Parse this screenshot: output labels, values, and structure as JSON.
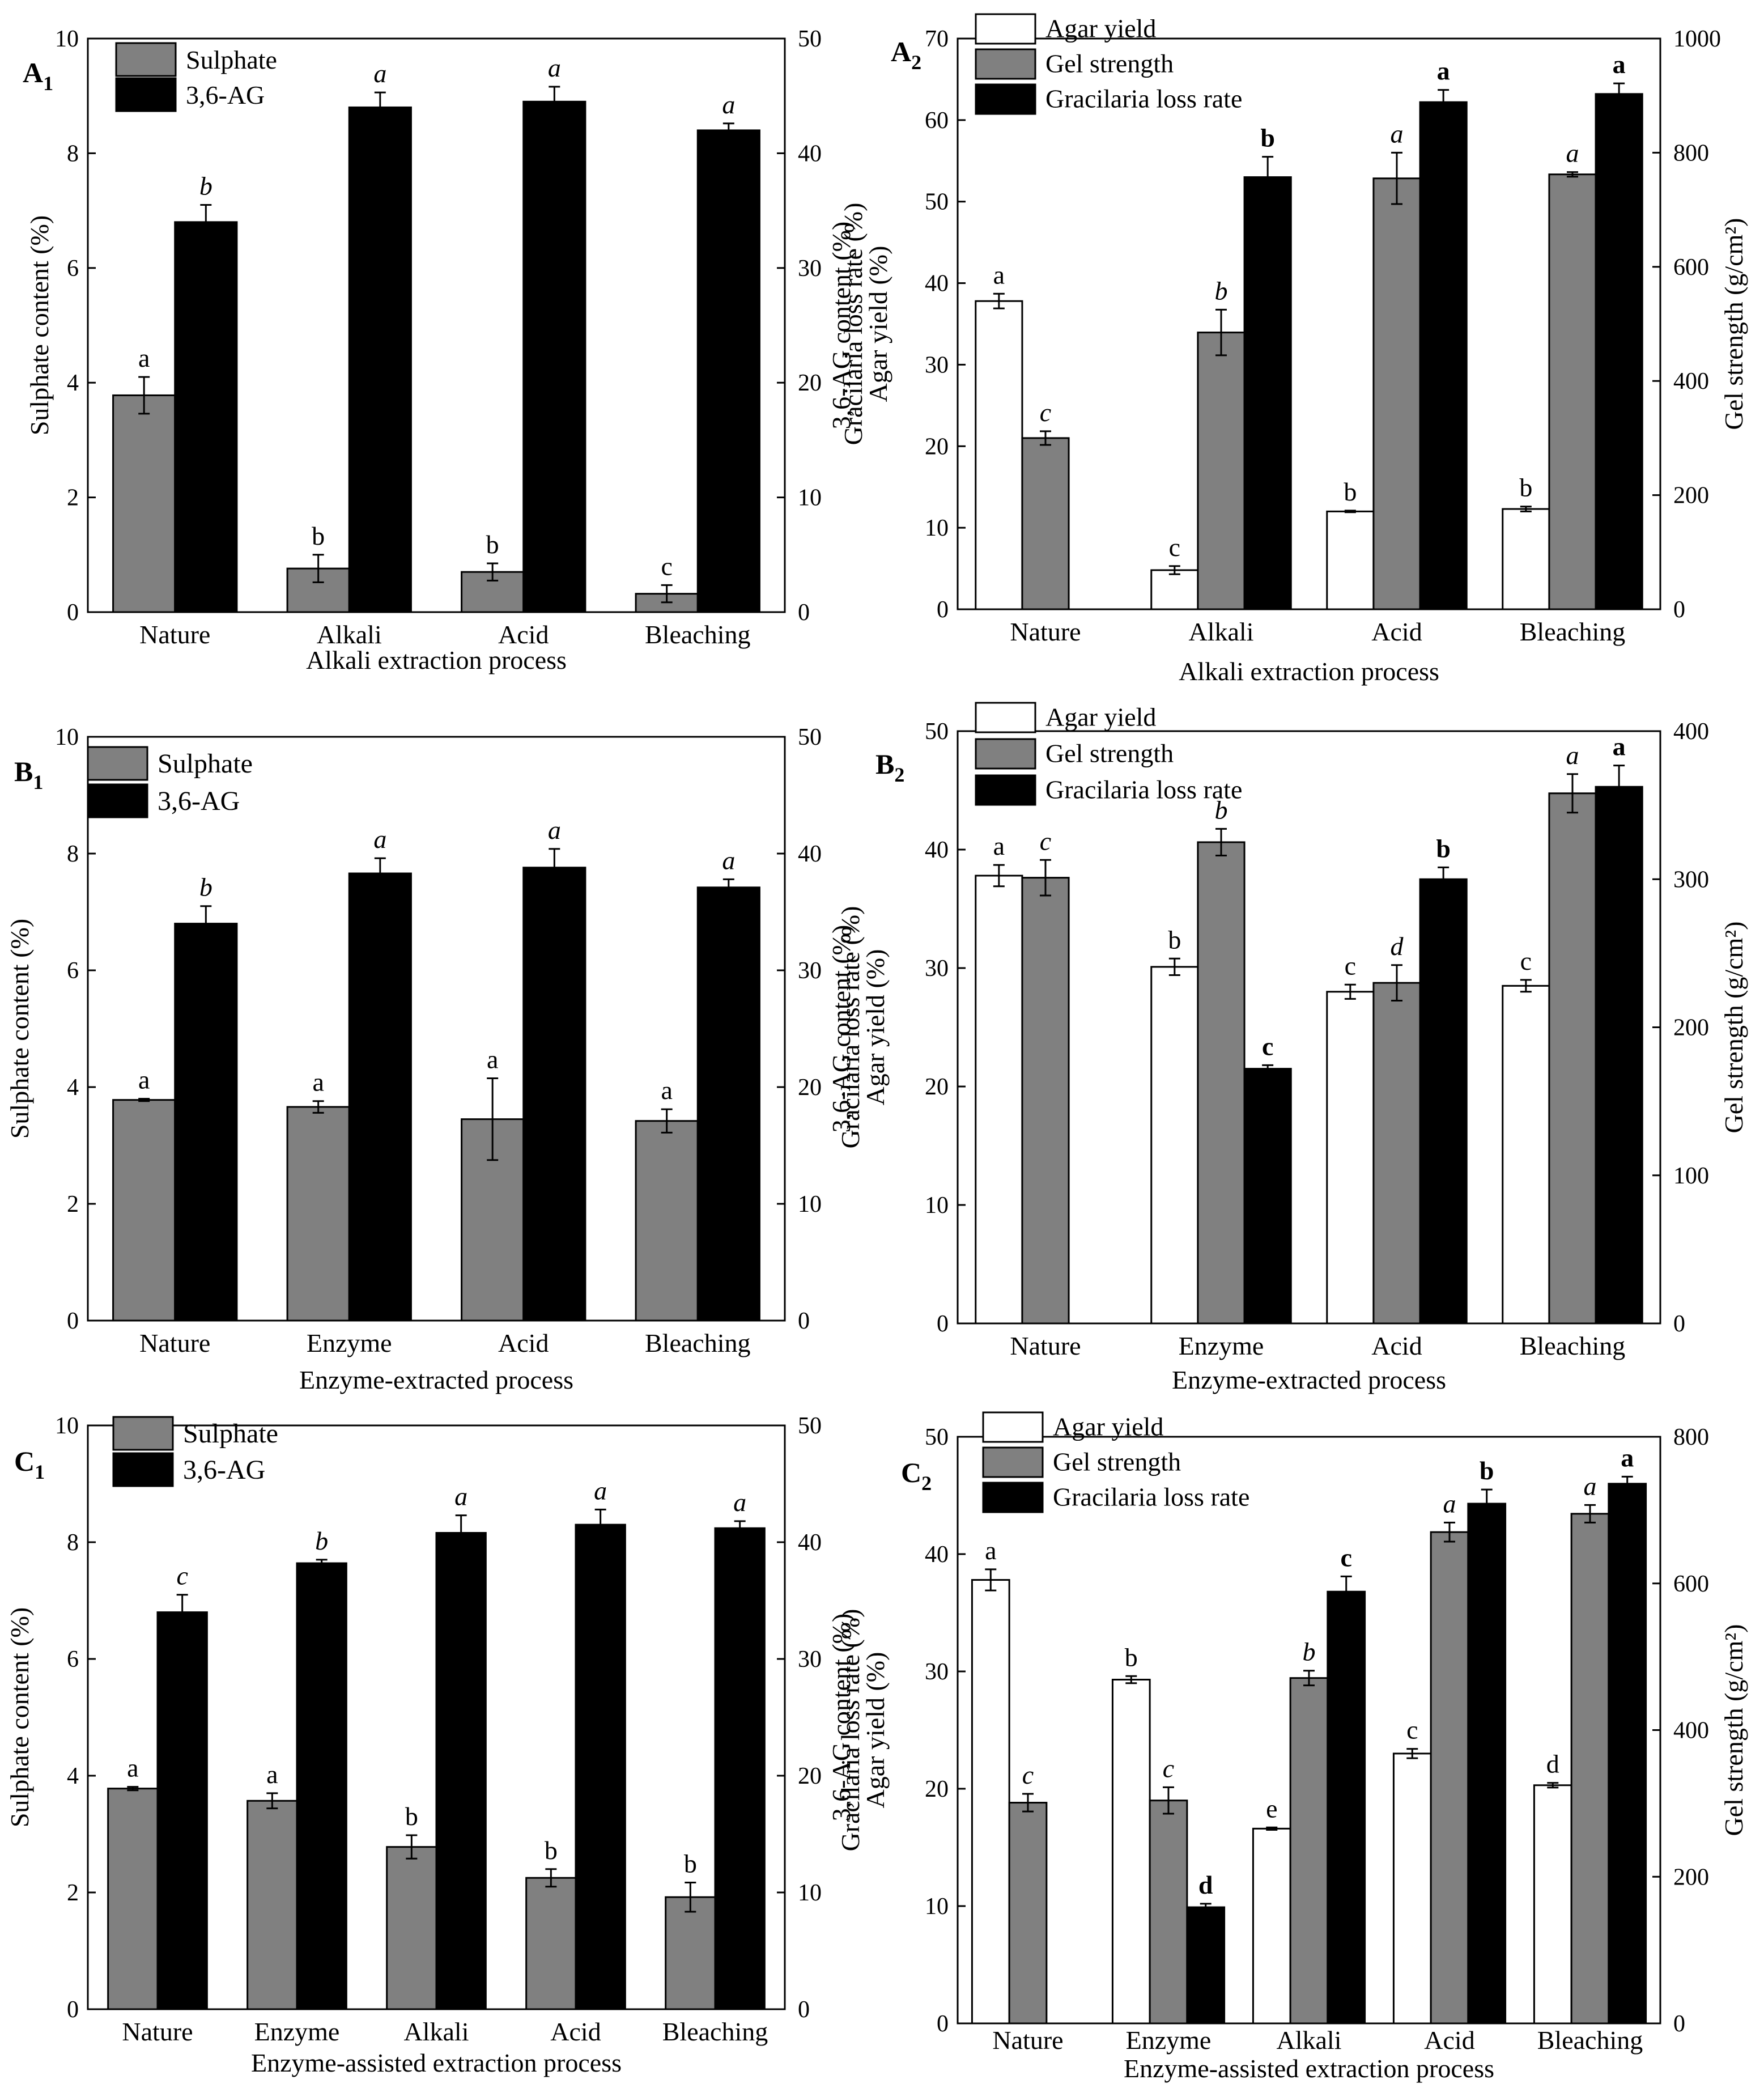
{
  "chart_data": [
    {
      "id": "A1",
      "type": "bar",
      "panel_label": "A",
      "panel_sub": "1",
      "categories": [
        "Nature",
        "Alkali",
        "Acid",
        "Bleaching"
      ],
      "xlabel": "Alkali extraction process",
      "ylabel": "Sulphate content (%)",
      "ylabel2": "3,6-AG content (%)",
      "ylim": [
        0,
        10
      ],
      "yticks": [
        0,
        2,
        4,
        6,
        8,
        10
      ],
      "ylim2": [
        0,
        50
      ],
      "yticks2": [
        0,
        10,
        20,
        30,
        40,
        50
      ],
      "series": [
        {
          "name": "Sulphate",
          "axis": "left",
          "color": "#808080",
          "values": [
            3.78,
            0.76,
            0.7,
            0.32
          ],
          "errors": [
            0.32,
            0.24,
            0.15,
            0.15
          ],
          "letters": [
            "a",
            "b",
            "b",
            "c"
          ],
          "letter_style": "normal"
        },
        {
          "name": "3,6-AG",
          "axis": "right",
          "color": "#000000",
          "values": [
            34.0,
            44.0,
            44.5,
            42.0
          ],
          "errors": [
            1.5,
            1.3,
            1.3,
            0.6
          ],
          "letters": [
            "b",
            "a",
            "a",
            "a"
          ],
          "letter_style": "italic"
        }
      ]
    },
    {
      "id": "A2",
      "type": "bar",
      "panel_label": "A",
      "panel_sub": "2",
      "categories": [
        "Nature",
        "Alkali",
        "Acid",
        "Bleaching"
      ],
      "xlabel": "Alkali extraction process",
      "ylabel": "Agar yield (%)",
      "ylabel_extra": "Gracilaria loss rate (%)",
      "ylabel2": "Gel strength (g/cm²)",
      "ylim": [
        0,
        70
      ],
      "yticks": [
        0,
        10,
        20,
        30,
        40,
        50,
        60,
        70
      ],
      "ylim2": [
        0,
        1000
      ],
      "yticks2": [
        0,
        200,
        400,
        600,
        800,
        1000
      ],
      "series": [
        {
          "name": "Agar yield",
          "axis": "left",
          "color": "#ffffff",
          "values": [
            37.8,
            4.8,
            12.0,
            12.3
          ],
          "errors": [
            0.9,
            0.5,
            0.1,
            0.3
          ],
          "letters": [
            "a",
            "c",
            "b",
            "b"
          ],
          "letter_style": "normal"
        },
        {
          "name": "Gel strength",
          "axis": "right",
          "color": "#808080",
          "values": [
            300,
            485,
            755,
            762
          ],
          "errors": [
            12,
            40,
            45,
            4
          ],
          "letters": [
            "c",
            "b",
            "a",
            "a"
          ],
          "letter_style": "italic"
        },
        {
          "name": "Gracilaria loss rate",
          "axis": "left",
          "color": "#000000",
          "values": [
            null,
            53.0,
            62.2,
            63.2
          ],
          "errors": [
            0,
            2.5,
            1.5,
            1.3
          ],
          "letters": [
            "",
            "b",
            "a",
            "a"
          ],
          "letter_style": "bold"
        }
      ]
    },
    {
      "id": "B1",
      "type": "bar",
      "panel_label": "B",
      "panel_sub": "1",
      "categories": [
        "Nature",
        "Enzyme",
        "Acid",
        "Bleaching"
      ],
      "xlabel": "Enzyme-extracted process",
      "ylabel": "Sulphate content (%)",
      "ylabel2": "3,6-AG content (%)",
      "ylim": [
        0,
        10
      ],
      "yticks": [
        0,
        2,
        4,
        6,
        8,
        10
      ],
      "ylim2": [
        0,
        50
      ],
      "yticks2": [
        0,
        10,
        20,
        30,
        40,
        50
      ],
      "series": [
        {
          "name": "Sulphate",
          "axis": "left",
          "color": "#808080",
          "values": [
            3.78,
            3.66,
            3.45,
            3.42
          ],
          "errors": [
            0.02,
            0.1,
            0.7,
            0.2
          ],
          "letters": [
            "a",
            "a",
            "a",
            "a"
          ],
          "letter_style": "normal"
        },
        {
          "name": "3,6-AG",
          "axis": "right",
          "color": "#000000",
          "values": [
            34.0,
            38.3,
            38.8,
            37.1
          ],
          "errors": [
            1.5,
            1.3,
            1.6,
            0.7
          ],
          "letters": [
            "b",
            "a",
            "a",
            "a"
          ],
          "letter_style": "italic"
        }
      ]
    },
    {
      "id": "B2",
      "type": "bar",
      "panel_label": "B",
      "panel_sub": "2",
      "categories": [
        "Nature",
        "Enzyme",
        "Acid",
        "Bleaching"
      ],
      "xlabel": "Enzyme-extracted process",
      "ylabel": "Agar yield (%)",
      "ylabel_extra": "Gracilaria loss rate (%)",
      "ylabel2": "Gel strength (g/cm²)",
      "ylim": [
        0,
        50
      ],
      "yticks": [
        0,
        10,
        20,
        30,
        40,
        50
      ],
      "ylim2": [
        0,
        400
      ],
      "yticks2": [
        0,
        100,
        200,
        300,
        400
      ],
      "series": [
        {
          "name": "Agar yield",
          "axis": "left",
          "color": "#ffffff",
          "values": [
            37.8,
            30.1,
            28.0,
            28.5
          ],
          "errors": [
            0.9,
            0.7,
            0.6,
            0.5
          ],
          "letters": [
            "a",
            "b",
            "c",
            "c"
          ],
          "letter_style": "normal"
        },
        {
          "name": "Gel strength",
          "axis": "right",
          "color": "#808080",
          "values": [
            301,
            325,
            230,
            358
          ],
          "errors": [
            12,
            9,
            12,
            13
          ],
          "letters": [
            "c",
            "b",
            "d",
            "a"
          ],
          "letter_style": "italic"
        },
        {
          "name": "Gracilaria loss rate",
          "axis": "left",
          "color": "#000000",
          "values": [
            null,
            21.5,
            37.5,
            45.3
          ],
          "errors": [
            0,
            0.3,
            1.0,
            1.8
          ],
          "letters": [
            "",
            "c",
            "b",
            "a"
          ],
          "letter_style": "bold"
        }
      ]
    },
    {
      "id": "C1",
      "type": "bar",
      "panel_label": "C",
      "panel_sub": "1",
      "categories": [
        "Nature",
        "Enzyme",
        "Alkali",
        "Acid",
        "Bleaching"
      ],
      "xlabel": "Enzyme-assisted extraction process",
      "ylabel": "Sulphate content (%)",
      "ylabel2": "3,6-AG content (%)",
      "ylim": [
        0,
        10
      ],
      "yticks": [
        0,
        2,
        4,
        6,
        8,
        10
      ],
      "ylim2": [
        0,
        50
      ],
      "yticks2": [
        0,
        10,
        20,
        30,
        40,
        50
      ],
      "series": [
        {
          "name": "Sulphate",
          "axis": "left",
          "color": "#808080",
          "values": [
            3.78,
            3.57,
            2.78,
            2.25,
            1.92
          ],
          "errors": [
            0.03,
            0.13,
            0.2,
            0.15,
            0.25
          ],
          "letters": [
            "a",
            "a",
            "b",
            "b",
            "b"
          ],
          "letter_style": "normal"
        },
        {
          "name": "3,6-AG",
          "axis": "right",
          "color": "#000000",
          "values": [
            34.0,
            38.2,
            40.8,
            41.5,
            41.2
          ],
          "errors": [
            1.5,
            0.3,
            1.5,
            1.3,
            0.6
          ],
          "letters": [
            "c",
            "b",
            "a",
            "a",
            "a"
          ],
          "letter_style": "italic"
        }
      ]
    },
    {
      "id": "C2",
      "type": "bar",
      "panel_label": "C",
      "panel_sub": "2",
      "categories": [
        "Nature",
        "Enzyme",
        "Alkali",
        "Acid",
        "Bleaching"
      ],
      "xlabel": "Enzyme-assisted extraction process",
      "ylabel": "Agar yield (%)",
      "ylabel_extra": "Gracilaria loss rate (%)",
      "ylabel2": "Gel strength (g/cm²)",
      "ylim": [
        0,
        50
      ],
      "yticks": [
        0,
        10,
        20,
        30,
        40,
        50
      ],
      "ylim2": [
        0,
        800
      ],
      "yticks2": [
        0,
        200,
        400,
        600,
        800
      ],
      "series": [
        {
          "name": "Agar yield",
          "axis": "left",
          "color": "#ffffff",
          "values": [
            37.8,
            29.3,
            16.6,
            23.0,
            20.3
          ],
          "errors": [
            0.9,
            0.3,
            0.1,
            0.4,
            0.2
          ],
          "letters": [
            "a",
            "b",
            "e",
            "c",
            "d"
          ],
          "letter_style": "normal"
        },
        {
          "name": "Gel strength",
          "axis": "right",
          "color": "#808080",
          "values": [
            301,
            304,
            471,
            670,
            695
          ],
          "errors": [
            12,
            18,
            10,
            13,
            12
          ],
          "letters": [
            "c",
            "c",
            "b",
            "a",
            "a"
          ],
          "letter_style": "italic"
        },
        {
          "name": "Gracilaria loss rate",
          "axis": "left",
          "color": "#000000",
          "values": [
            null,
            9.9,
            36.8,
            44.3,
            46.0
          ],
          "errors": [
            0,
            0.3,
            1.3,
            1.2,
            0.6
          ],
          "letters": [
            "",
            "d",
            "c",
            "b",
            "a"
          ],
          "letter_style": "bold"
        }
      ]
    }
  ]
}
